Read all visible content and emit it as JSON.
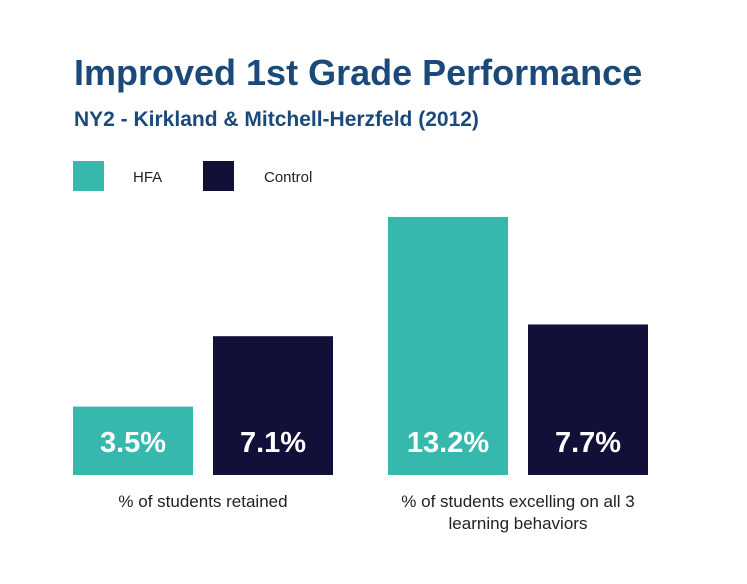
{
  "title": "Improved 1st Grade Performance",
  "subtitle": "NY2 - Kirkland & Mitchell-Herzfeld (2012)",
  "colors": {
    "title": "#1b4a7a",
    "hfa": "#36b8ad",
    "control": "#120f38"
  },
  "legend": [
    {
      "label": "HFA",
      "color": "#36b8ad"
    },
    {
      "label": "Control",
      "color": "#120f38"
    }
  ],
  "chart_data": {
    "type": "bar",
    "title": "Improved 1st Grade Performance",
    "subtitle": "NY2 - Kirkland & Mitchell-Herzfeld (2012)",
    "categories": [
      "% of students retained",
      "% of students excelling on all 3 learning behaviors"
    ],
    "series": [
      {
        "name": "HFA",
        "values": [
          3.5,
          13.2
        ],
        "labels": [
          "3.5%",
          "13.2%"
        ]
      },
      {
        "name": "Control",
        "values": [
          7.1,
          7.7
        ],
        "labels": [
          "7.1%",
          "7.7%"
        ]
      }
    ],
    "legend_position": "top-left",
    "grid": false
  }
}
